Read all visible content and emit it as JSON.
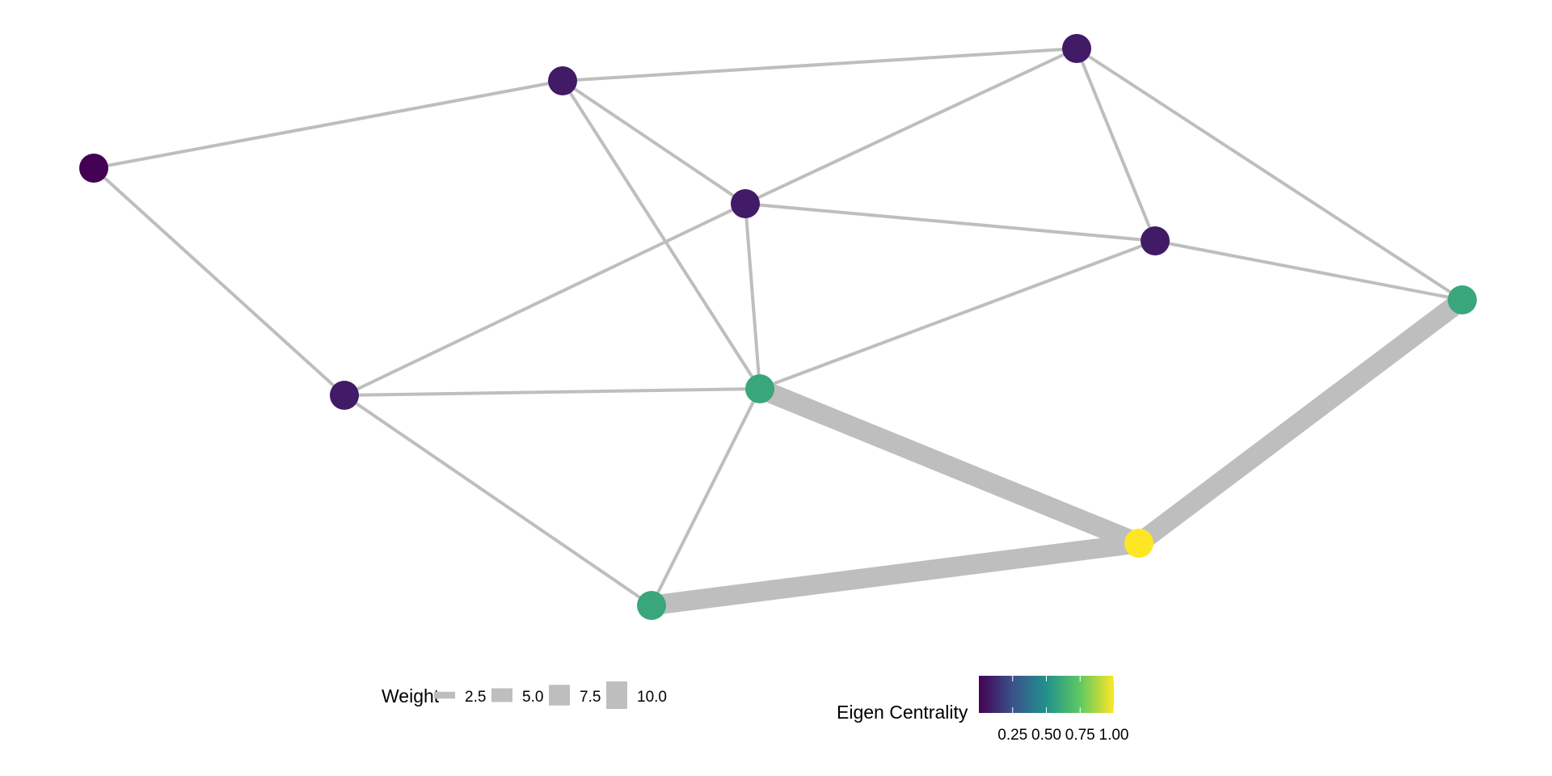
{
  "chart_data": {
    "type": "network",
    "nodes": [
      {
        "id": "A",
        "eigen_centrality": 0.0
      },
      {
        "id": "B",
        "eigen_centrality": 0.08
      },
      {
        "id": "C",
        "eigen_centrality": 0.08
      },
      {
        "id": "D",
        "eigen_centrality": 0.08
      },
      {
        "id": "E",
        "eigen_centrality": 0.08
      },
      {
        "id": "F",
        "eigen_centrality": 0.6
      },
      {
        "id": "G",
        "eigen_centrality": 0.08
      },
      {
        "id": "H",
        "eigen_centrality": 0.6
      },
      {
        "id": "I",
        "eigen_centrality": 1.0
      },
      {
        "id": "J",
        "eigen_centrality": 0.6
      }
    ],
    "edges": [
      {
        "from": "A",
        "to": "B",
        "weight": 1
      },
      {
        "from": "A",
        "to": "G",
        "weight": 1
      },
      {
        "from": "B",
        "to": "C",
        "weight": 1
      },
      {
        "from": "B",
        "to": "D",
        "weight": 1
      },
      {
        "from": "B",
        "to": "H",
        "weight": 1
      },
      {
        "from": "C",
        "to": "D",
        "weight": 1
      },
      {
        "from": "C",
        "to": "E",
        "weight": 1
      },
      {
        "from": "C",
        "to": "F",
        "weight": 1
      },
      {
        "from": "D",
        "to": "E",
        "weight": 1
      },
      {
        "from": "D",
        "to": "G",
        "weight": 1
      },
      {
        "from": "D",
        "to": "H",
        "weight": 1
      },
      {
        "from": "E",
        "to": "H",
        "weight": 1
      },
      {
        "from": "E",
        "to": "F",
        "weight": 1
      },
      {
        "from": "G",
        "to": "H",
        "weight": 1
      },
      {
        "from": "G",
        "to": "J",
        "weight": 1
      },
      {
        "from": "H",
        "to": "J",
        "weight": 1
      },
      {
        "from": "H",
        "to": "I",
        "weight": 7
      },
      {
        "from": "I",
        "to": "F",
        "weight": 7
      },
      {
        "from": "I",
        "to": "J",
        "weight": 7
      }
    ],
    "edge_color": "#bebebe",
    "legend_weight": {
      "title": "Weight",
      "values": [
        2.5,
        5.0,
        7.5,
        10.0
      ],
      "labels": [
        "2.5",
        "5.0",
        "7.5",
        "10.0"
      ]
    },
    "legend_color": {
      "title": "Eigen Centrality",
      "ticks": [
        0.25,
        0.5,
        0.75,
        1.0
      ],
      "labels": [
        "0.25",
        "0.50",
        "0.75",
        "1.00"
      ],
      "range": [
        0,
        1
      ],
      "palette": [
        "#440154",
        "#3b528b",
        "#21918c",
        "#5ec962",
        "#fde725"
      ]
    },
    "legend_placement": "bottom"
  }
}
